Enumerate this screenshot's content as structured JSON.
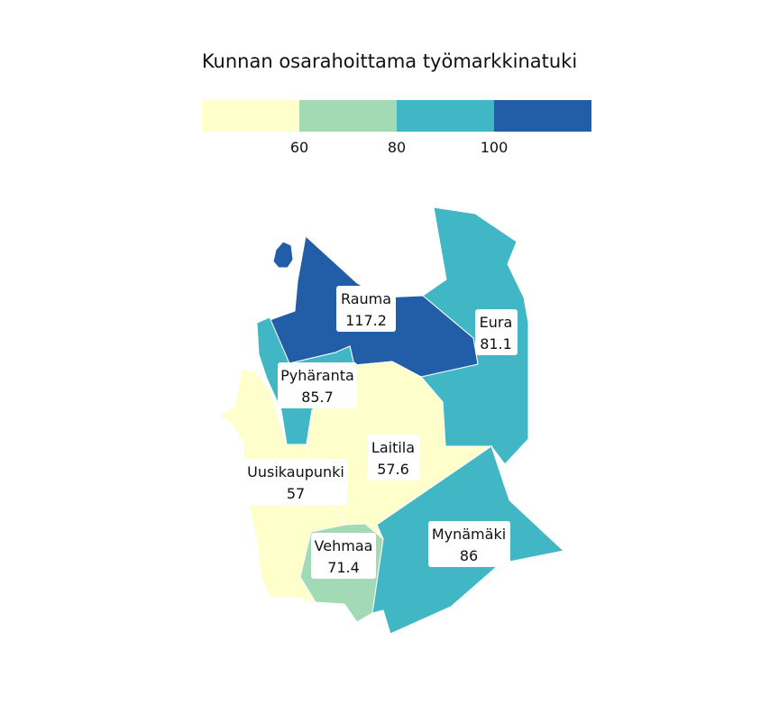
{
  "title": "Kunnan osarahoittama työmarkkinatuki",
  "legend": {
    "colors": [
      "#ffffcc",
      "#a1dab4",
      "#41b6c4",
      "#225ea8"
    ],
    "breaks": [
      "60",
      "80",
      "100"
    ]
  },
  "regions": [
    {
      "name": "Rauma",
      "value": "117.2",
      "color": "#225ea8"
    },
    {
      "name": "Eura",
      "value": "81.1",
      "color": "#41b6c4"
    },
    {
      "name": "Pyhäranta",
      "value": "85.7",
      "color": "#41b6c4"
    },
    {
      "name": "Laitila",
      "value": "57.6",
      "color": "#ffffcc"
    },
    {
      "name": "Uusikaupunki",
      "value": "57",
      "color": "#ffffcc"
    },
    {
      "name": "Vehmaa",
      "value": "71.4",
      "color": "#a1dab4"
    },
    {
      "name": "Mynämäki",
      "value": "86",
      "color": "#41b6c4"
    }
  ]
}
